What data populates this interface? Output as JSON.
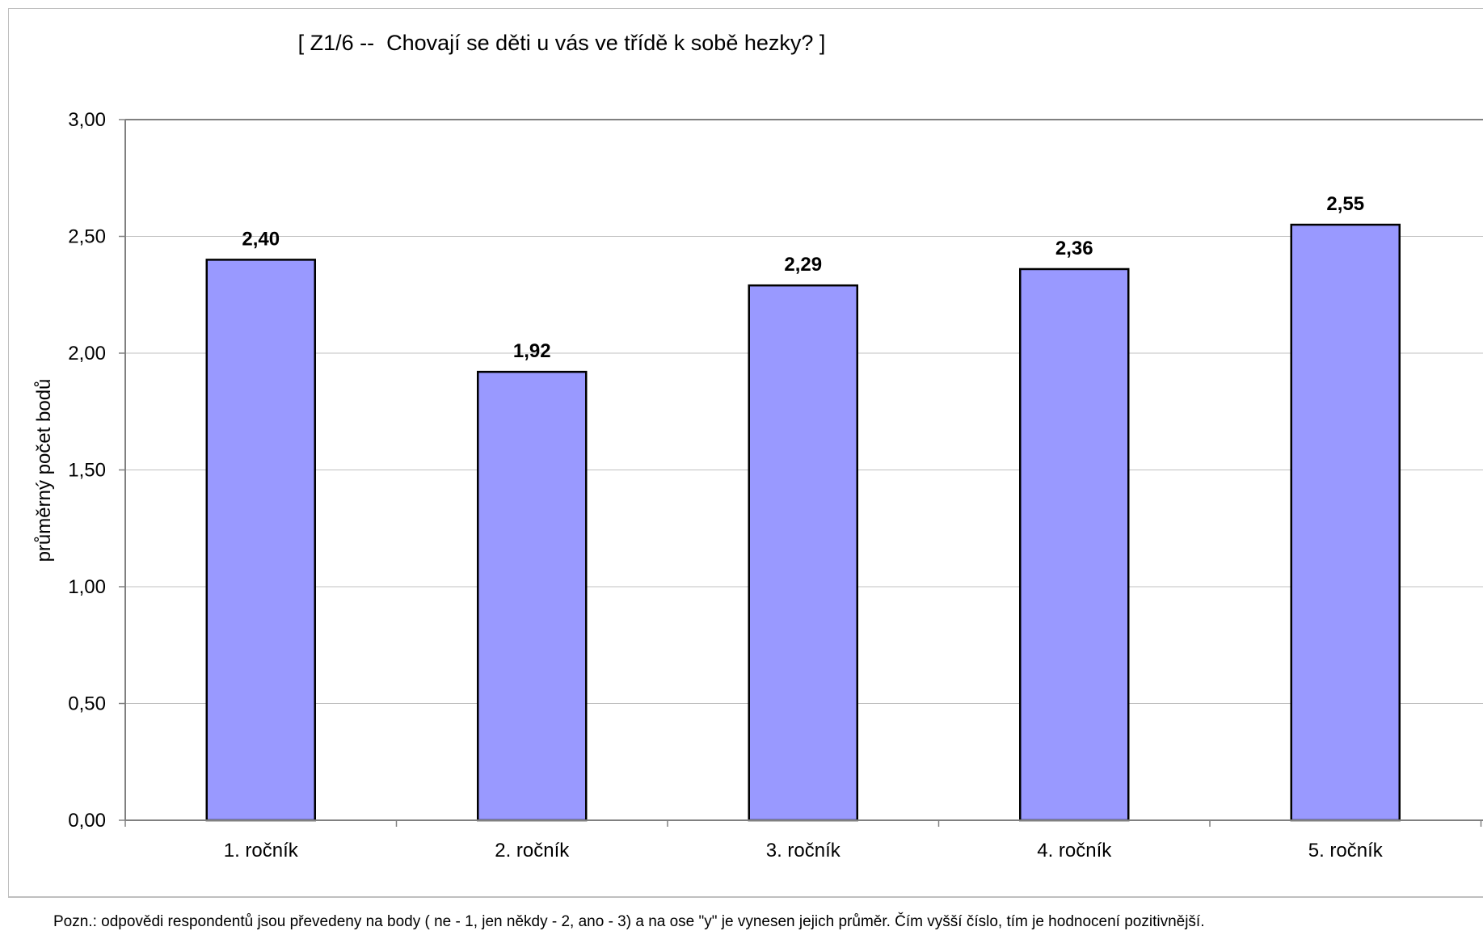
{
  "chart_data": {
    "type": "bar",
    "title": "[ Z1/6 --  Chovají se děti u vás ve třídě k sobě hezky? ]",
    "xlabel": "",
    "ylabel": "průměrný počet bodů",
    "categories": [
      "1. ročník",
      "2. ročník",
      "3. ročník",
      "4. ročník",
      "5. ročník"
    ],
    "values": [
      2.4,
      1.92,
      2.29,
      2.36,
      2.55
    ],
    "data_labels": [
      "2,40",
      "1,92",
      "2,29",
      "2,36",
      "2,55"
    ],
    "ylim": [
      0,
      3
    ],
    "yticks": [
      0,
      0.5,
      1,
      1.5,
      2,
      2.5,
      3
    ],
    "ytick_labels": [
      "0,00",
      "0,50",
      "1,00",
      "1,50",
      "2,00",
      "2,50",
      "3,00"
    ],
    "grid": true,
    "legend": "none",
    "bar_color": "#9999ff",
    "bar_edge_color": "#000000",
    "gridline_color": "#c0c0c0"
  },
  "note": "Pozn.: odpovědi respondentů jsou převedeny na body ( ne - 1, jen někdy - 2, ano - 3) a na ose \"y\" je vynesen jejich průměr. Čím vyšší číslo, tím je hodnocení pozitivnější."
}
